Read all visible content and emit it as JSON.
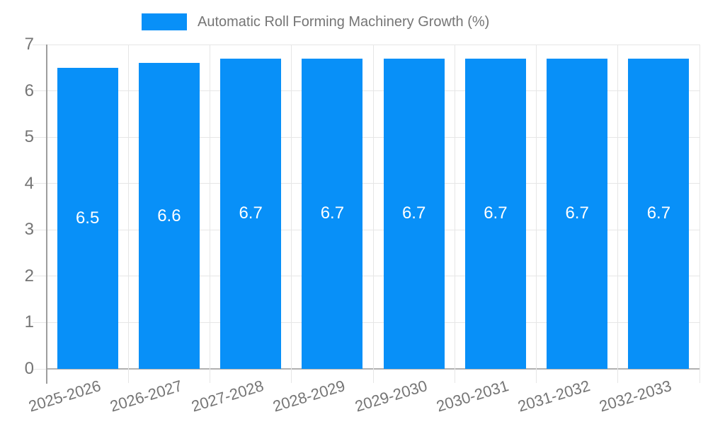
{
  "chart_data": {
    "type": "bar",
    "title": "Automatic Roll Forming Machinery Growth (%)",
    "legend_position": "top",
    "grid": true,
    "categories": [
      "2025-2026",
      "2026-2027",
      "2027-2028",
      "2028-2029",
      "2029-2030",
      "2030-2031",
      "2031-2032",
      "2032-2033"
    ],
    "series": [
      {
        "name": "Automatic Roll Forming Machinery Growth (%)",
        "values": [
          6.5,
          6.6,
          6.7,
          6.7,
          6.7,
          6.7,
          6.7,
          6.7
        ],
        "value_labels": [
          "6.5",
          "6.6",
          "6.7",
          "6.7",
          "6.7",
          "6.7",
          "6.7",
          "6.7"
        ]
      }
    ],
    "xlabel": "",
    "ylabel": "",
    "ylim": [
      0,
      7
    ],
    "yticks": [
      0,
      1,
      2,
      3,
      4,
      5,
      6,
      7
    ],
    "ytick_labels": [
      "0",
      "1",
      "2",
      "3",
      "4",
      "5",
      "6",
      "7"
    ],
    "colors": {
      "bar": "#0890f8",
      "grid": "#e6e6e6",
      "baseline": "#b0b0b0",
      "axis": "#9e9e9e",
      "text": "#757575",
      "bar_label": "#ffffff",
      "background": "#ffffff"
    }
  }
}
